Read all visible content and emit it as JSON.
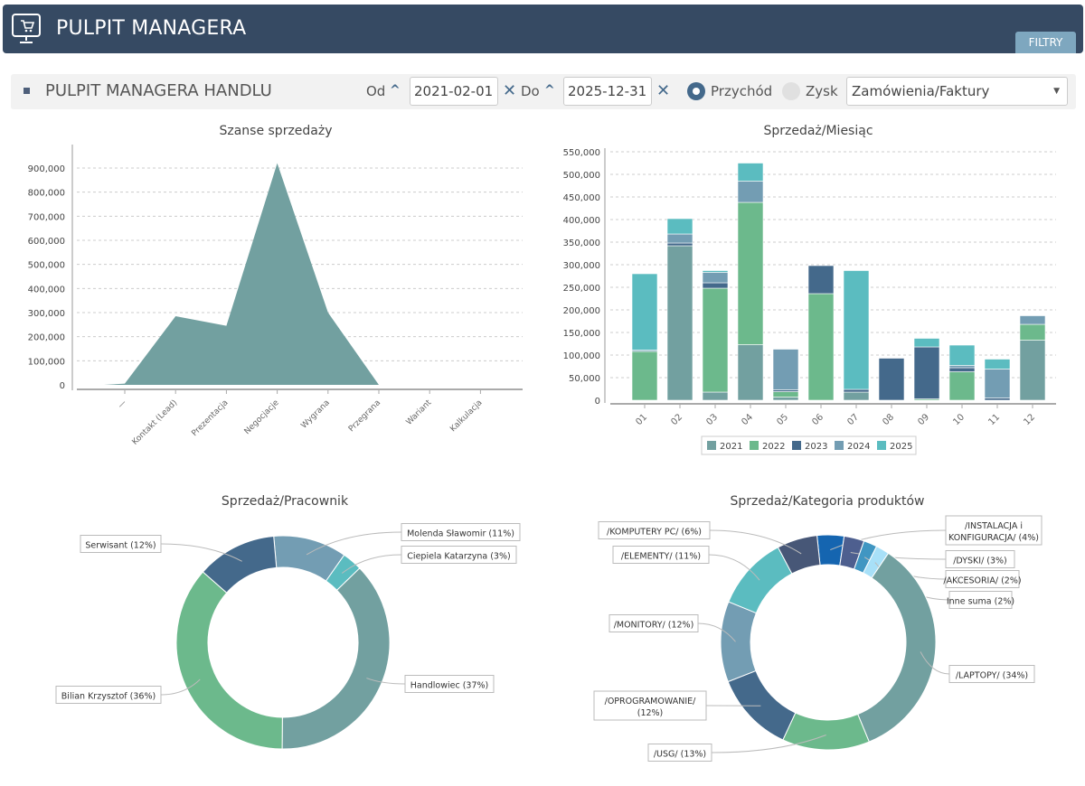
{
  "header": {
    "title": "PULPIT MANAGERA",
    "icon": "monitor-cart-icon",
    "filters_tab": "FILTRY"
  },
  "toolbar": {
    "title": "PULPIT MANAGERA HANDLU",
    "from_label": "Od",
    "from_value": "2021-02-01",
    "to_label": "Do",
    "to_value": "2025-12-31",
    "radio_revenue": "Przychód",
    "radio_profit": "Zysk",
    "selected_radio": "Przychód",
    "select_value": "Zamówienia/Faktury"
  },
  "colors": {
    "header": "#364a63",
    "accent": "#44698b",
    "filters": "#7ea7bf"
  },
  "chart_data": [
    {
      "type": "area",
      "title": "Szanse sprzedaży",
      "categories": [
        "—",
        "Kontakt (Lead)",
        "Prezentacja",
        "Negocjacje",
        "Wygrana",
        "Przegrana",
        "Wariant",
        "Kalkulacja"
      ],
      "values": [
        5000,
        285000,
        245000,
        920000,
        300000,
        0,
        null,
        null
      ],
      "ylim": [
        0,
        900000
      ],
      "yticks": [
        "0",
        "100,000",
        "200,000",
        "300,000",
        "400,000",
        "500,000",
        "600,000",
        "700,000",
        "800,000",
        "900,000"
      ],
      "grid": true,
      "color": "#72a0a0"
    },
    {
      "type": "bar",
      "stacked": true,
      "title": "Sprzedaż/Miesiąc",
      "categories": [
        "01",
        "02",
        "03",
        "04",
        "05",
        "06",
        "07",
        "08",
        "09",
        "10",
        "11",
        "12"
      ],
      "ylim": [
        0,
        550000
      ],
      "yticks": [
        "0",
        "50,000",
        "100,000",
        "150,000",
        "200,000",
        "250,000",
        "300,000",
        "350,000",
        "400,000",
        "450,000",
        "500,000",
        "550,000"
      ],
      "grid": true,
      "legend": "bottom",
      "series": [
        {
          "name": "2021",
          "color": "#72a0a0",
          "values": [
            0,
            342000,
            18000,
            123000,
            7000,
            0,
            18000,
            0,
            0,
            0,
            0,
            133000
          ]
        },
        {
          "name": "2022",
          "color": "#6cb98c",
          "values": [
            108000,
            0,
            230000,
            315000,
            12000,
            236000,
            0,
            0,
            3000,
            63000,
            0,
            35000
          ]
        },
        {
          "name": "2023",
          "color": "#44698b",
          "values": [
            0,
            6000,
            12000,
            0,
            4000,
            62000,
            6000,
            93000,
            115000,
            9000,
            5000,
            0
          ]
        },
        {
          "name": "2024",
          "color": "#739db3",
          "values": [
            3000,
            20000,
            23000,
            47000,
            90000,
            0,
            0,
            0,
            0,
            5000,
            64000,
            19000
          ]
        },
        {
          "name": "2025",
          "color": "#5bbcc0",
          "values": [
            169000,
            34000,
            4000,
            40000,
            0,
            0,
            263000,
            0,
            19000,
            45000,
            22000,
            0
          ]
        }
      ]
    },
    {
      "type": "pie",
      "donut": true,
      "title": "Sprzedaż/Pracownik",
      "slices": [
        {
          "label": "Molenda Sławomir (11%)",
          "value": 11,
          "color": "#739db3"
        },
        {
          "label": "Ciepiela Katarzyna (3%)",
          "value": 3,
          "color": "#5bbcc0"
        },
        {
          "label": "Handlowiec (37%)",
          "value": 37,
          "color": "#72a0a0"
        },
        {
          "label": "Bilian Krzysztof (36%)",
          "value": 36,
          "color": "#6cb98c"
        },
        {
          "label": "Serwisant (12%)",
          "value": 12,
          "color": "#44698b"
        }
      ]
    },
    {
      "type": "pie",
      "donut": true,
      "title": "Sprzedaż/Kategoria produktów",
      "slices": [
        {
          "label": "/INSTALACJA i KONFIGURACJA/ (4%)",
          "value": 4,
          "color": "#1565b0"
        },
        {
          "label": "/DYSKI/ (3%)",
          "value": 3,
          "color": "#4e5f8f"
        },
        {
          "label": "/AKCESORIA/ (2%)",
          "value": 2,
          "color": "#4096c2"
        },
        {
          "label": "Inne suma  (2%)",
          "value": 2,
          "color": "#a8e0f8"
        },
        {
          "label": "/LAPTOPY/ (34%)",
          "value": 34,
          "color": "#72a0a0"
        },
        {
          "label": "/USG/ (13%)",
          "value": 13,
          "color": "#6cb98c"
        },
        {
          "label": "/OPROGRAMOWANIE/ (12%)",
          "value": 12,
          "color": "#44698b"
        },
        {
          "label": "/MONITORY/ (12%)",
          "value": 12,
          "color": "#739db3"
        },
        {
          "label": "/ELEMENTY/ (11%)",
          "value": 11,
          "color": "#5bbcc0"
        },
        {
          "label": "/KOMPUTERY PC/ (6%)",
          "value": 6,
          "color": "#475777"
        }
      ]
    }
  ]
}
